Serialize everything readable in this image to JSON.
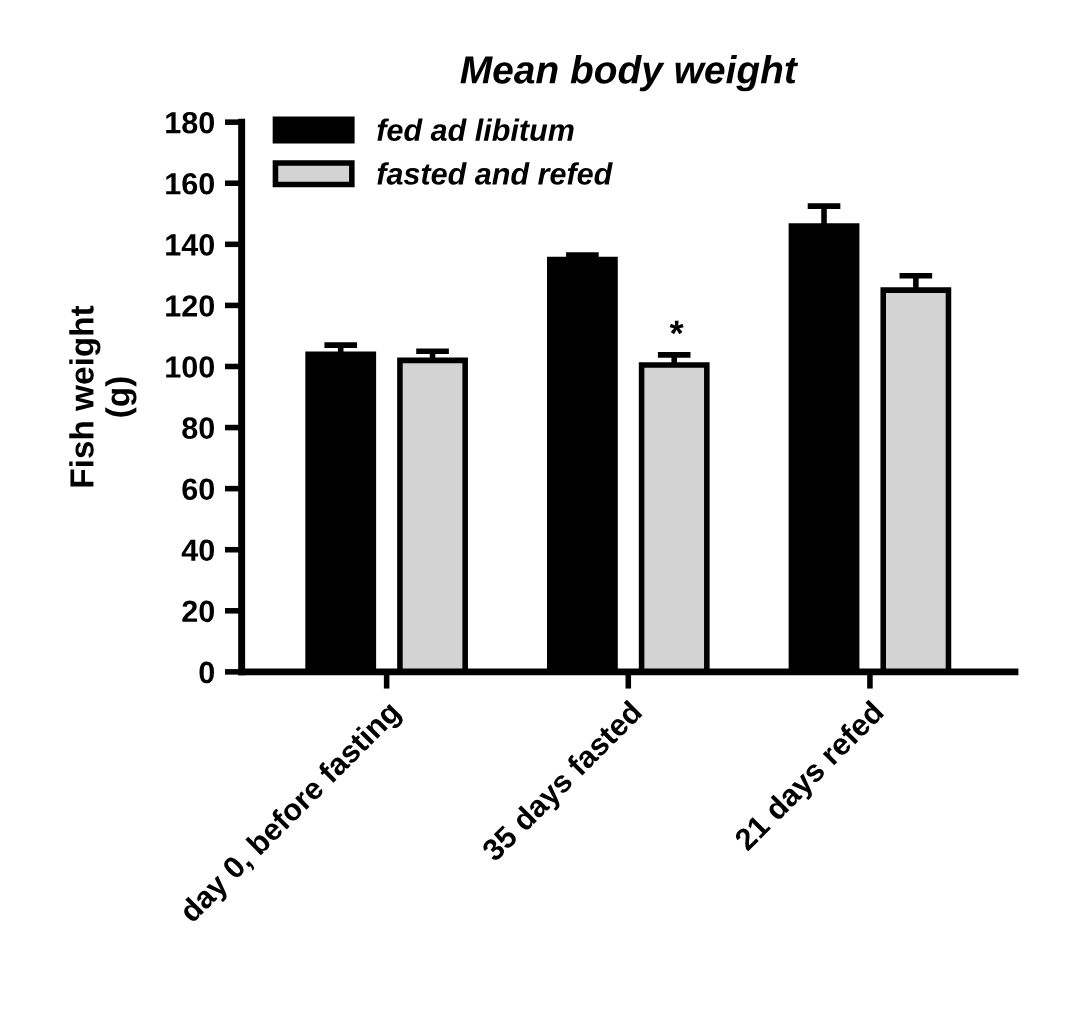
{
  "chart_data": {
    "type": "bar",
    "title": "Mean body weight",
    "ylabel": "Fish weight\n(g)",
    "categories": [
      "day 0, before fasting",
      "35 days fasted",
      "21 days refed"
    ],
    "series": [
      {
        "name": "fed ad libitum",
        "color": "#000000",
        "values": [
          104,
          135,
          146
        ],
        "errors": [
          [
            104,
            107
          ],
          [
            135,
            136.5
          ],
          [
            146,
            152.5
          ]
        ]
      },
      {
        "name": "fasted and refed",
        "color": "#d3d3d3",
        "values": [
          102,
          100.5,
          125
        ],
        "errors": [
          [
            102,
            105
          ],
          [
            100.5,
            103.8
          ],
          [
            125,
            129.7
          ]
        ]
      }
    ],
    "annotations": [
      "*"
    ],
    "ylim": [
      0,
      180
    ],
    "yticks": [
      0,
      20,
      40,
      60,
      80,
      100,
      120,
      140,
      160,
      180
    ],
    "legend": "top left",
    "grid": false
  }
}
